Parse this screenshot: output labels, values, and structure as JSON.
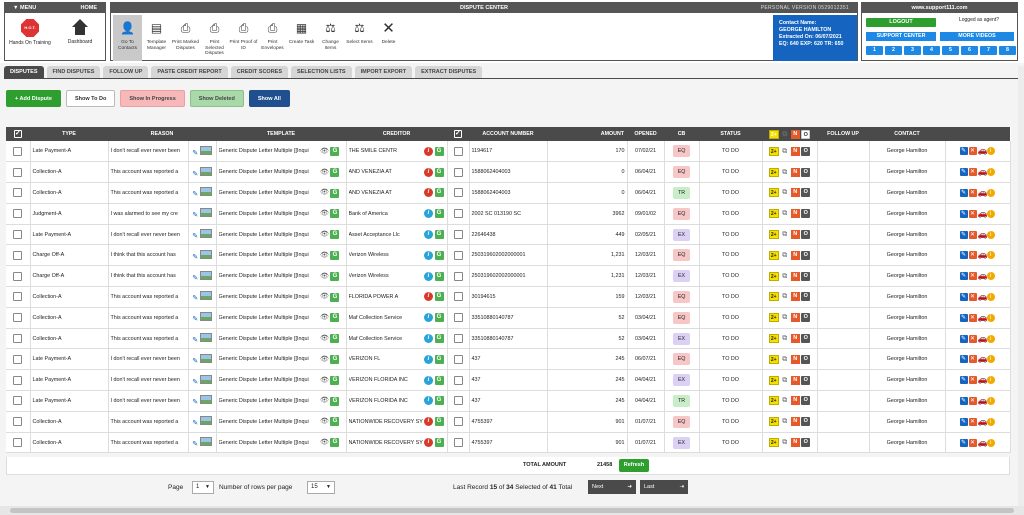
{
  "menu": {
    "menu_label": "MENU",
    "home_label": "HOME",
    "items": [
      {
        "label": "Hands On Training",
        "icon": "stop-sign-icon",
        "sign_text": "H.O.T."
      },
      {
        "label": "Dashboard",
        "icon": "house-icon"
      }
    ]
  },
  "dispute_center": {
    "title": "DISPUTE CENTER",
    "version": "PERSONAL VERSION 0529012351",
    "tools": [
      {
        "label": "Go To Contacts",
        "icon": "person-icon"
      },
      {
        "label": "Template Manager",
        "icon": "template-icon"
      },
      {
        "label": "Print Marked Disputes",
        "icon": "printer-icon"
      },
      {
        "label": "Print Selected Disputes",
        "icon": "printer-icon"
      },
      {
        "label": "Print Proof of ID",
        "icon": "printer-icon"
      },
      {
        "label": "Print Envelopes",
        "icon": "printer-icon"
      },
      {
        "label": "Create Task",
        "icon": "calendar-icon"
      },
      {
        "label": "Change Items",
        "icon": "gavel-icon"
      },
      {
        "label": "Select Items",
        "icon": "gavel-icon"
      },
      {
        "label": "Delete",
        "icon": "x-icon"
      }
    ]
  },
  "contact_panel": {
    "line1": "Contact Name:",
    "line2": "GEORGE HAMILTON",
    "line3": "Extracted On: 06/07/2021",
    "line4": "EQ: 640   EXP: 620   TR: 650"
  },
  "right_panel": {
    "site": "www.support111.com",
    "logout": "LOGOUT",
    "logged_as": "Logged as agent?",
    "support": "SUPPORT CENTER",
    "videos": "MORE VIDEOS",
    "pages": [
      "1",
      "2",
      "3",
      "4",
      "5",
      "6",
      "7",
      "8"
    ]
  },
  "tabs": [
    "DISPUTES",
    "FIND DISPUTES",
    "FOLLOW UP",
    "PASTE CREDIT REPORT",
    "CREDIT SCORES",
    "SELECTION LISTS",
    "IMPORT EXPORT",
    "EXTRACT DISPUTES"
  ],
  "actions": {
    "add": "+ Add Dispute",
    "todo": "Show To Do",
    "progress": "Show In Progress",
    "deleted": "Show Deleted",
    "all": "Show All"
  },
  "columns": {
    "type": "TYPE",
    "reason": "REASON",
    "template": "TEMPLATE",
    "creditor": "CREDITOR",
    "account": "ACCOUNT NUMBER",
    "amount": "AMOUNT",
    "opened": "OPENED",
    "cb": "CB",
    "status": "STATUS",
    "followup": "FOLLOW UP",
    "contact": "CONTACT"
  },
  "status_badges": {
    "two_plus": "2+",
    "n": "N",
    "o": "O"
  },
  "rows": [
    {
      "type": "Late Payment-A",
      "reason": "I don't recall ever never been",
      "template": "Generic Dispute Letter Multiple [[Inqui",
      "creditor": "THE SMILE CENTR",
      "info": "red",
      "account": "1194617",
      "amount": "170",
      "opened": "07/02/21",
      "cb": "EQ",
      "status": "TO DO",
      "contact": "George Hamilton"
    },
    {
      "type": "Collection-A",
      "reason": "This account was reported a",
      "template": "Generic Dispute Letter Multiple [[Inqui",
      "creditor": "AND VENEZIA AT",
      "info": "red",
      "account": "1588062404003",
      "amount": "0",
      "opened": "06/04/21",
      "cb": "EQ",
      "status": "TO DO",
      "contact": "George Hamilton"
    },
    {
      "type": "Collection-A",
      "reason": "This account was reported a",
      "template": "Generic Dispute Letter Multiple [[Inqui",
      "creditor": "AND VENEZIA AT",
      "info": "red",
      "account": "1588062404003",
      "amount": "0",
      "opened": "06/04/21",
      "cb": "TR",
      "status": "TO DO",
      "contact": "George Hamilton"
    },
    {
      "type": "Judgment-A",
      "reason": "I was alarmed to see my cre",
      "template": "Generic Dispute Letter Multiple [[Inqui",
      "creditor": "Bank of America",
      "info": "blue",
      "account": "2002 SC 013190 SC",
      "amount": "3962",
      "opened": "09/01/02",
      "cb": "EQ",
      "status": "TO DO",
      "contact": "George Hamilton"
    },
    {
      "type": "Late Payment-A",
      "reason": "I don't recall ever never been",
      "template": "Generic Dispute Letter Multiple [[Inqui",
      "creditor": "Asset Acceptance Llc",
      "info": "blue",
      "account": "22646438",
      "amount": "449",
      "opened": "02/05/21",
      "cb": "EX",
      "status": "TO DO",
      "contact": "George Hamilton"
    },
    {
      "type": "Charge Off-A",
      "reason": "I think that this account has",
      "template": "Generic Dispute Letter Multiple [[Inqui",
      "creditor": "Verizon Wireless",
      "info": "blue",
      "account": "250319602002000001",
      "amount": "1,231",
      "opened": "12/03/21",
      "cb": "EQ",
      "status": "TO DO",
      "contact": "George Hamilton"
    },
    {
      "type": "Charge Off-A",
      "reason": "I think that this account has",
      "template": "Generic Dispute Letter Multiple [[Inqui",
      "creditor": "Verizon Wireless",
      "info": "blue",
      "account": "250319602002000001",
      "amount": "1,231",
      "opened": "12/03/21",
      "cb": "EX",
      "status": "TO DO",
      "contact": "George Hamilton"
    },
    {
      "type": "Collection-A",
      "reason": "This account was reported a",
      "template": "Generic Dispute Letter Multiple [[Inqui",
      "creditor": "FLORIDA POWER A",
      "info": "red",
      "account": "30194615",
      "amount": "159",
      "opened": "12/03/21",
      "cb": "EQ",
      "status": "TO DO",
      "contact": "George Hamilton"
    },
    {
      "type": "Collection-A",
      "reason": "This account was reported a",
      "template": "Generic Dispute Letter Multiple [[Inqui",
      "creditor": "Maf Collection Service",
      "info": "blue",
      "account": "33510880140787",
      "amount": "52",
      "opened": "03/04/21",
      "cb": "EQ",
      "status": "TO DO",
      "contact": "George Hamilton"
    },
    {
      "type": "Collection-A",
      "reason": "This account was reported a",
      "template": "Generic Dispute Letter Multiple [[Inqui",
      "creditor": "Maf Collection Service",
      "info": "blue",
      "account": "33510880140787",
      "amount": "52",
      "opened": "03/04/21",
      "cb": "EX",
      "status": "TO DO",
      "contact": "George Hamilton"
    },
    {
      "type": "Late Payment-A",
      "reason": "I don't recall ever never been",
      "template": "Generic Dispute Letter Multiple [[Inqui",
      "creditor": "VERIZON FL",
      "info": "blue",
      "account": "437",
      "amount": "245",
      "opened": "06/07/21",
      "cb": "EQ",
      "status": "TO DO",
      "contact": "George Hamilton"
    },
    {
      "type": "Late Payment-A",
      "reason": "I don't recall ever never been",
      "template": "Generic Dispute Letter Multiple [[Inqui",
      "creditor": "VERIZON FLORIDA INC",
      "info": "blue",
      "account": "437",
      "amount": "245",
      "opened": "04/04/21",
      "cb": "EX",
      "status": "TO DO",
      "contact": "George Hamilton"
    },
    {
      "type": "Late Payment-A",
      "reason": "I don't recall ever never been",
      "template": "Generic Dispute Letter Multiple [[Inqui",
      "creditor": "VERIZON FLORIDA INC",
      "info": "blue",
      "account": "437",
      "amount": "245",
      "opened": "04/04/21",
      "cb": "TR",
      "status": "TO DO",
      "contact": "George Hamilton"
    },
    {
      "type": "Collection-A",
      "reason": "This account was reported a",
      "template": "Generic Dispute Letter Multiple [[Inqui",
      "creditor": "NATIONWIDE RECOVERY SY",
      "info": "red",
      "account": "4755397",
      "amount": "901",
      "opened": "01/07/21",
      "cb": "EQ",
      "status": "TO DO",
      "contact": "George Hamilton"
    },
    {
      "type": "Collection-A",
      "reason": "This account was reported a",
      "template": "Generic Dispute Letter Multiple [[Inqui",
      "creditor": "NATIONWIDE RECOVERY SY",
      "info": "red",
      "account": "4755397",
      "amount": "901",
      "opened": "01/07/21",
      "cb": "EX",
      "status": "TO DO",
      "contact": "George Hamilton"
    }
  ],
  "totals": {
    "label": "TOTAL AMOUNT",
    "value": "21458",
    "refresh": "Refresh"
  },
  "pager": {
    "page_label": "Page",
    "page_value": "1",
    "rows_label": "Number of rows per page",
    "rows_value": "15",
    "last_record": "Last Record",
    "first": "15",
    "of": "of",
    "second": "34",
    "selected_of": "Selected of",
    "third": "41",
    "total": "Total",
    "next": "Next",
    "last": "Last"
  },
  "colors": {
    "header_bg": "#4a4a4a",
    "accent_blue": "#1e88e5",
    "contact_blue": "#1565c0",
    "green": "#2e9e2e",
    "eq": "#f7c6c6",
    "ex": "#dcd0f5",
    "tr": "#c9ecc9"
  }
}
